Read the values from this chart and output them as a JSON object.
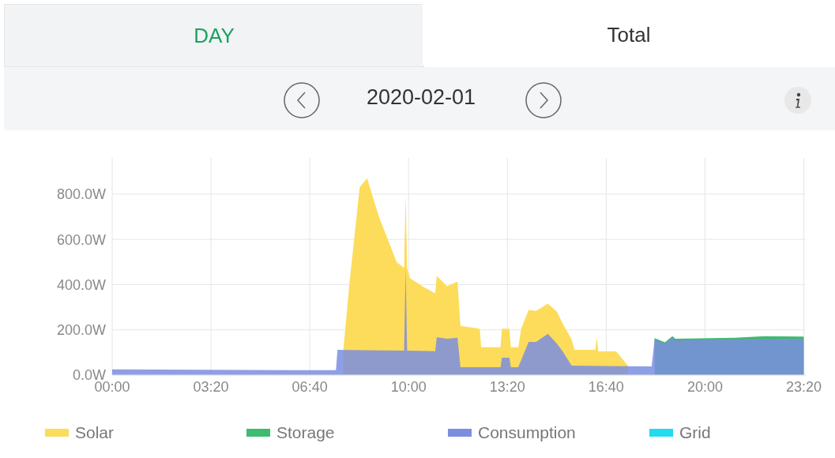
{
  "chart_data": {
    "type": "area",
    "title": "2020-02-01",
    "annotations": [
      "DAY",
      "Total"
    ],
    "xlim": [
      0,
      23.4
    ],
    "xticks": [
      {
        "value": 0,
        "label": "00:00"
      },
      {
        "value": 3.3333,
        "label": "03:20"
      },
      {
        "value": 6.6667,
        "label": "06:40"
      },
      {
        "value": 10,
        "label": "10:00"
      },
      {
        "value": 13.3333,
        "label": "13:20"
      },
      {
        "value": 16.6667,
        "label": "16:40"
      },
      {
        "value": 20,
        "label": "20:00"
      },
      {
        "value": 23.3333,
        "label": "23:20"
      }
    ],
    "ylim": [
      0,
      960
    ],
    "yticks": [
      {
        "value": 0,
        "label": "0.0W"
      },
      {
        "value": 200,
        "label": "200.0W"
      },
      {
        "value": 400,
        "label": "400.0W"
      },
      {
        "value": 600,
        "label": "600.0W"
      },
      {
        "value": 800,
        "label": "800.0W"
      }
    ],
    "grid": true,
    "legend": "bottom",
    "series": [
      {
        "name": "Solar",
        "color": "#fcdc5a",
        "x": [
          7.8,
          8.0,
          8.35,
          8.6,
          9.0,
          9.6,
          9.85,
          9.9,
          9.95,
          10.05,
          10.5,
          10.9,
          10.95,
          11.3,
          11.65,
          11.75,
          12.4,
          12.45,
          13.1,
          13.15,
          13.4,
          13.45,
          13.7,
          13.8,
          14.05,
          14.3,
          14.7,
          15.0,
          15.2,
          15.5,
          15.6,
          16.3,
          16.35,
          16.4,
          17.0,
          17.4
        ],
        "values": [
          112,
          400,
          830,
          870,
          700,
          498,
          474,
          800,
          474,
          428,
          390,
          361,
          439,
          393,
          414,
          217,
          205,
          123,
          123,
          205,
          205,
          123,
          123,
          205,
          288,
          284,
          316,
          281,
          228,
          158,
          112,
          112,
          168,
          105,
          105,
          42
        ]
      },
      {
        "name": "Storage",
        "color": "#3dbb6e",
        "x": [
          18.3,
          18.65,
          18.9,
          19.0,
          21,
          22,
          23.33
        ],
        "values": [
          163,
          145,
          172,
          161,
          165,
          172,
          170
        ]
      },
      {
        "name": "Consumption",
        "color": "#7b8ee0",
        "x": [
          0,
          3,
          6,
          7.55,
          7.6,
          8.5,
          9.85,
          9.9,
          9.95,
          10.9,
          10.95,
          11.3,
          11.65,
          11.75,
          13.1,
          13.15,
          13.4,
          13.45,
          13.7,
          14.05,
          14.3,
          14.7,
          15.0,
          15.2,
          15.5,
          18.2,
          18.3,
          18.65,
          18.9,
          19.0,
          21,
          23.33
        ],
        "values": [
          25,
          24,
          22,
          22,
          112,
          110,
          108,
          474,
          108,
          106,
          168,
          161,
          165,
          35,
          35,
          77,
          77,
          35,
          35,
          147,
          147,
          182,
          140,
          105,
          42,
          38,
          158,
          140,
          168,
          154,
          158,
          161
        ]
      },
      {
        "name": "Grid",
        "color": "#22dbee"
      }
    ]
  }
}
